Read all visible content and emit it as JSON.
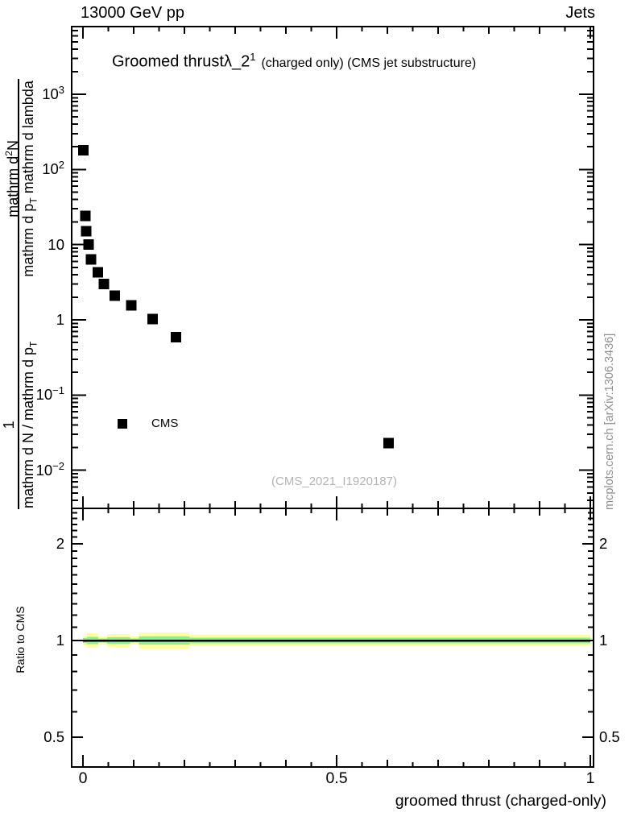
{
  "header": {
    "left": "13000 GeV pp",
    "right": "Jets"
  },
  "title": {
    "main": "Groomed thrust",
    "formula": "λ_2",
    "sup": "1",
    "suffix": "(charged only) (CMS jet substructure)"
  },
  "watermark": "(CMS_2021_I1920187)",
  "side_note": "mcplots.cern.ch [arXiv:1306.3436]",
  "legend": {
    "label": "CMS",
    "marker": "filled-square",
    "color": "#000000"
  },
  "chart_data": {
    "type": "scatter",
    "x_axis": {
      "label": "groomed thrust (charged-only)",
      "lim": [
        -0.022,
        1.006
      ],
      "minor_step": 0.05,
      "ticks": [
        {
          "v": 0,
          "label": "0"
        },
        {
          "v": 0.5,
          "label": "0.5"
        },
        {
          "v": 1,
          "label": "1"
        }
      ]
    },
    "y_axis": {
      "scale": "log",
      "lim": [
        0.0032,
        7900
      ],
      "ticks": [
        {
          "v": 1000,
          "base": "10",
          "sup": "3"
        },
        {
          "v": 100,
          "base": "10",
          "sup": "2"
        },
        {
          "v": 10,
          "base": "10",
          "sup": ""
        },
        {
          "v": 1,
          "base": "1",
          "sup": ""
        },
        {
          "v": 0.1,
          "base": "10",
          "sup": "−1"
        },
        {
          "v": 0.01,
          "base": "10",
          "sup": "−2"
        }
      ],
      "label_fractions": [
        {
          "num": [
            {
              "t": "1"
            }
          ],
          "den": [
            {
              "t": "mathrm d N / mathrm d p"
            },
            {
              "sub": "T"
            }
          ]
        },
        {
          "num": [
            {
              "t": "mathrm d"
            },
            {
              "sup": "2"
            },
            {
              "t": "N"
            }
          ],
          "den": [
            {
              "t": "mathrm d p"
            },
            {
              "sub": "T"
            },
            {
              "t": " mathrm d lambda"
            }
          ]
        }
      ]
    },
    "series": [
      {
        "name": "CMS",
        "marker": "square",
        "color": "#000000",
        "points": [
          [
            0.001,
            180
          ],
          [
            0.005,
            24
          ],
          [
            0.006,
            15
          ],
          [
            0.011,
            10
          ],
          [
            0.016,
            6.4
          ],
          [
            0.029,
            4.3
          ],
          [
            0.041,
            3.0
          ],
          [
            0.063,
            2.1
          ],
          [
            0.095,
            1.56
          ],
          [
            0.137,
            1.02
          ],
          [
            0.183,
            0.59
          ],
          [
            0.602,
            0.023
          ]
        ]
      }
    ],
    "ratio_panel": {
      "ylabel": "Ratio to CMS",
      "scale": "log",
      "lim": [
        0.404,
        2.56
      ],
      "line_at": 1,
      "ticks": [
        {
          "v": 2,
          "label": "2"
        },
        {
          "v": 1,
          "label": "1"
        },
        {
          "v": 0.5,
          "label": "0.5"
        }
      ],
      "band_colors": {
        "outer": "#ffffa0",
        "inner": "#8cf08c"
      },
      "band_segments": [
        {
          "x0": 0.0,
          "x1": 0.008,
          "outer": 1.035,
          "inner": 1.017
        },
        {
          "x0": 0.008,
          "x1": 0.03,
          "outer": 1.053,
          "inner": 1.025
        },
        {
          "x0": 0.03,
          "x1": 0.048,
          "outer": 1.029,
          "inner": 1.015
        },
        {
          "x0": 0.048,
          "x1": 0.093,
          "outer": 1.047,
          "inner": 1.023
        },
        {
          "x0": 0.093,
          "x1": 0.11,
          "outer": 1.029,
          "inner": 1.015
        },
        {
          "x0": 0.11,
          "x1": 0.21,
          "outer": 1.059,
          "inner": 1.029
        },
        {
          "x0": 0.21,
          "x1": 1.0,
          "outer": 1.041,
          "inner": 1.02
        }
      ]
    }
  }
}
